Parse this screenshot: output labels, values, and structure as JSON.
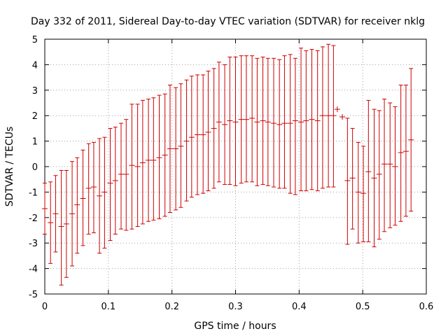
{
  "chart_data": {
    "type": "scatter",
    "title": "Day 332 of 2011, Sidereal Day-to-day VTEC variation (SDTVAR) for receiver nklg",
    "xlabel": "GPS time / hours",
    "ylabel": "SDTVAR / TECUs",
    "xlim": [
      0,
      0.6
    ],
    "ylim": [
      -5,
      5
    ],
    "x_ticks": [
      "0",
      "0.1",
      "0.2",
      "0.3",
      "0.4",
      "0.5",
      "0.6"
    ],
    "y_ticks": [
      "-5",
      "-4",
      "-3",
      "-2",
      "-1",
      "0",
      "1",
      "2",
      "3",
      "4",
      "5"
    ],
    "grid": true,
    "error_bars": true,
    "color": "#cc0000",
    "series": [
      {
        "points": [
          {
            "x": 0.0,
            "y": -1.65,
            "lo": -2.65,
            "hi": -0.65
          },
          {
            "x": 0.009,
            "y": -2.2,
            "lo": -3.8,
            "hi": -0.6
          },
          {
            "x": 0.017,
            "y": -1.85,
            "lo": -3.35,
            "hi": -0.35
          },
          {
            "x": 0.026,
            "y": -2.35,
            "lo": -4.65,
            "hi": -0.15
          },
          {
            "x": 0.034,
            "y": -2.25,
            "lo": -4.35,
            "hi": -0.15
          },
          {
            "x": 0.043,
            "y": -1.85,
            "lo": -3.9,
            "hi": 0.2
          },
          {
            "x": 0.051,
            "y": -1.5,
            "lo": -3.4,
            "hi": 0.35
          },
          {
            "x": 0.06,
            "y": -1.25,
            "lo": -3.1,
            "hi": 0.65
          },
          {
            "x": 0.069,
            "y": -0.85,
            "lo": -2.65,
            "hi": 0.9
          },
          {
            "x": 0.077,
            "y": -0.8,
            "lo": -2.6,
            "hi": 0.95
          },
          {
            "x": 0.086,
            "y": -1.15,
            "lo": -3.4,
            "hi": 1.1
          },
          {
            "x": 0.094,
            "y": -1.0,
            "lo": -3.2,
            "hi": 1.15
          },
          {
            "x": 0.103,
            "y": -0.65,
            "lo": -2.9,
            "hi": 1.5
          },
          {
            "x": 0.111,
            "y": -0.55,
            "lo": -2.65,
            "hi": 1.55
          },
          {
            "x": 0.12,
            "y": -0.3,
            "lo": -2.45,
            "hi": 1.7
          },
          {
            "x": 0.128,
            "y": -0.3,
            "lo": -2.5,
            "hi": 1.85
          },
          {
            "x": 0.137,
            "y": 0.05,
            "lo": -2.45,
            "hi": 2.45
          },
          {
            "x": 0.146,
            "y": 0.0,
            "lo": -2.35,
            "hi": 2.45
          },
          {
            "x": 0.154,
            "y": 0.15,
            "lo": -2.25,
            "hi": 2.6
          },
          {
            "x": 0.163,
            "y": 0.25,
            "lo": -2.15,
            "hi": 2.65
          },
          {
            "x": 0.171,
            "y": 0.25,
            "lo": -2.1,
            "hi": 2.7
          },
          {
            "x": 0.18,
            "y": 0.35,
            "lo": -2.05,
            "hi": 2.8
          },
          {
            "x": 0.189,
            "y": 0.45,
            "lo": -1.95,
            "hi": 2.85
          },
          {
            "x": 0.197,
            "y": 0.7,
            "lo": -1.8,
            "hi": 3.2
          },
          {
            "x": 0.206,
            "y": 0.7,
            "lo": -1.7,
            "hi": 3.1
          },
          {
            "x": 0.214,
            "y": 0.8,
            "lo": -1.6,
            "hi": 3.25
          },
          {
            "x": 0.223,
            "y": 1.0,
            "lo": -1.35,
            "hi": 3.4
          },
          {
            "x": 0.231,
            "y": 1.15,
            "lo": -1.2,
            "hi": 3.55
          },
          {
            "x": 0.24,
            "y": 1.25,
            "lo": -1.1,
            "hi": 3.6
          },
          {
            "x": 0.249,
            "y": 1.25,
            "lo": -1.05,
            "hi": 3.6
          },
          {
            "x": 0.257,
            "y": 1.35,
            "lo": -0.95,
            "hi": 3.75
          },
          {
            "x": 0.266,
            "y": 1.5,
            "lo": -0.85,
            "hi": 3.85
          },
          {
            "x": 0.274,
            "y": 1.75,
            "lo": -0.6,
            "hi": 4.1
          },
          {
            "x": 0.283,
            "y": 1.65,
            "lo": -0.7,
            "hi": 4.0
          },
          {
            "x": 0.291,
            "y": 1.8,
            "lo": -0.7,
            "hi": 4.3
          },
          {
            "x": 0.3,
            "y": 1.75,
            "lo": -0.75,
            "hi": 4.3
          },
          {
            "x": 0.309,
            "y": 1.85,
            "lo": -0.65,
            "hi": 4.35
          },
          {
            "x": 0.317,
            "y": 1.85,
            "lo": -0.6,
            "hi": 4.35
          },
          {
            "x": 0.326,
            "y": 1.9,
            "lo": -0.6,
            "hi": 4.35
          },
          {
            "x": 0.334,
            "y": 1.75,
            "lo": -0.75,
            "hi": 4.25
          },
          {
            "x": 0.343,
            "y": 1.8,
            "lo": -0.7,
            "hi": 4.3
          },
          {
            "x": 0.351,
            "y": 1.75,
            "lo": -0.75,
            "hi": 4.25
          },
          {
            "x": 0.36,
            "y": 1.7,
            "lo": -0.8,
            "hi": 4.25
          },
          {
            "x": 0.369,
            "y": 1.65,
            "lo": -0.85,
            "hi": 4.2
          },
          {
            "x": 0.377,
            "y": 1.7,
            "lo": -0.85,
            "hi": 4.35
          },
          {
            "x": 0.386,
            "y": 1.7,
            "lo": -1.05,
            "hi": 4.4
          },
          {
            "x": 0.394,
            "y": 1.8,
            "lo": -1.1,
            "hi": 4.25
          },
          {
            "x": 0.403,
            "y": 1.75,
            "lo": -0.95,
            "hi": 4.65
          },
          {
            "x": 0.411,
            "y": 1.8,
            "lo": -0.95,
            "hi": 4.55
          },
          {
            "x": 0.42,
            "y": 1.85,
            "lo": -0.9,
            "hi": 4.6
          },
          {
            "x": 0.429,
            "y": 1.8,
            "lo": -0.95,
            "hi": 4.55
          },
          {
            "x": 0.437,
            "y": 2.0,
            "lo": -0.85,
            "hi": 4.7
          },
          {
            "x": 0.446,
            "y": 2.0,
            "lo": -0.8,
            "hi": 4.8
          },
          {
            "x": 0.454,
            "y": 2.0,
            "lo": -0.8,
            "hi": 4.75
          },
          {
            "x": 0.46,
            "y": 2.25,
            "lo": 2.25,
            "hi": 2.25
          },
          {
            "x": 0.468,
            "y": 1.95,
            "lo": 1.95,
            "hi": 1.95
          },
          {
            "x": 0.476,
            "y": -0.55,
            "lo": -3.05,
            "hi": 1.9
          },
          {
            "x": 0.484,
            "y": -0.45,
            "lo": -2.45,
            "hi": 1.5
          },
          {
            "x": 0.493,
            "y": -1.0,
            "lo": -3.0,
            "hi": 0.95
          },
          {
            "x": 0.501,
            "y": -1.05,
            "lo": -2.95,
            "hi": 0.8
          },
          {
            "x": 0.509,
            "y": -0.2,
            "lo": -2.95,
            "hi": 2.6
          },
          {
            "x": 0.518,
            "y": -0.45,
            "lo": -3.15,
            "hi": 2.25
          },
          {
            "x": 0.526,
            "y": -0.3,
            "lo": -2.85,
            "hi": 2.2
          },
          {
            "x": 0.534,
            "y": 0.1,
            "lo": -2.55,
            "hi": 2.65
          },
          {
            "x": 0.543,
            "y": 0.1,
            "lo": -2.4,
            "hi": 2.5
          },
          {
            "x": 0.551,
            "y": 0.0,
            "lo": -2.3,
            "hi": 2.35
          },
          {
            "x": 0.56,
            "y": 0.55,
            "lo": -2.15,
            "hi": 3.2
          },
          {
            "x": 0.568,
            "y": 0.6,
            "lo": -1.95,
            "hi": 3.2
          },
          {
            "x": 0.576,
            "y": 1.05,
            "lo": -1.75,
            "hi": 3.85
          }
        ]
      }
    ]
  }
}
